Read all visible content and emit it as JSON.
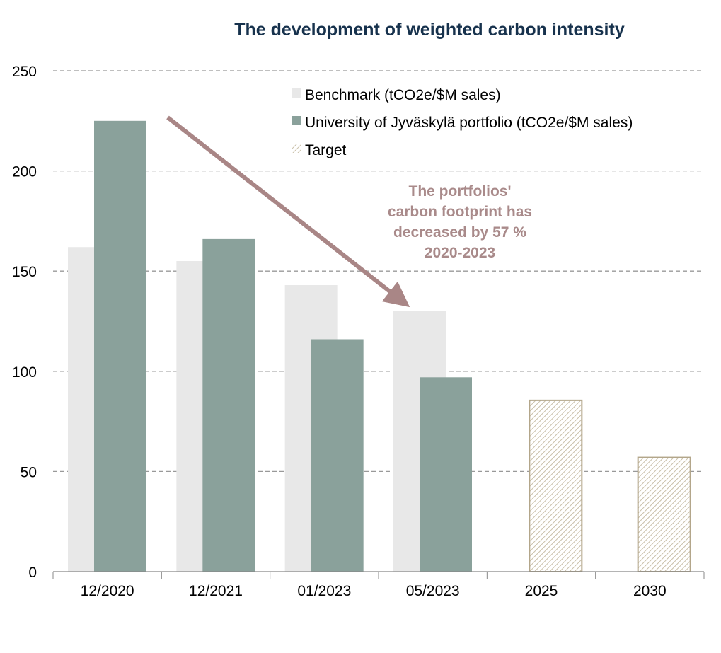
{
  "chart_data": {
    "type": "bar",
    "title": "The development of weighted carbon intensity",
    "categories": [
      "12/2020",
      "12/2021",
      "01/2023",
      "05/2023",
      "2025",
      "2030"
    ],
    "series": [
      {
        "name": "Benchmark (tCO2e/$M sales)",
        "values": [
          162,
          155,
          143,
          130,
          null,
          null
        ],
        "color": "#e8e8e8"
      },
      {
        "name": "University of Jyväskylä portfolio (tCO2e/$M sales)",
        "values": [
          225,
          166,
          116,
          97,
          null,
          null
        ],
        "color": "#8aa19b"
      },
      {
        "name": "Target",
        "values": [
          null,
          null,
          null,
          null,
          85.5,
          57
        ],
        "color": "#b3a68a",
        "pattern": "hatched"
      }
    ],
    "ylim": [
      0,
      250
    ],
    "yticks": [
      0,
      50,
      100,
      150,
      200,
      250
    ],
    "grid": true,
    "legend_position": "top-right",
    "annotation": {
      "lines": [
        "The portfolios'",
        "carbon footprint has",
        "decreased by 57 %",
        "2020-2023"
      ],
      "color": "#a98a8a"
    },
    "title_color": "#17324d"
  }
}
